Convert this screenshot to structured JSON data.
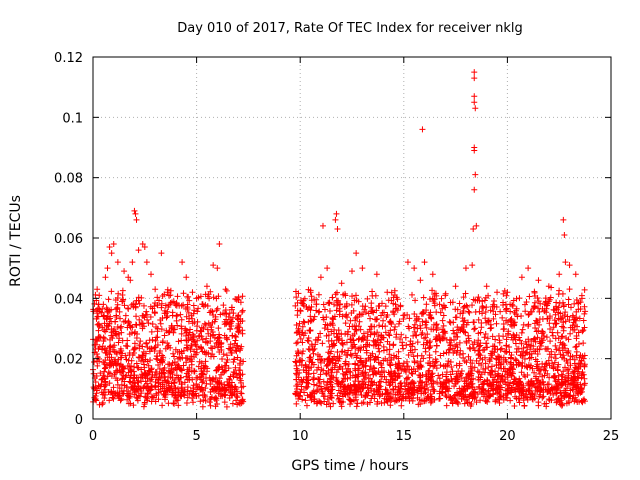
{
  "chart_data": {
    "type": "scatter",
    "title": "Day 010 of 2017, Rate Of TEC Index for receiver nklg",
    "xlabel": "GPS time / hours",
    "ylabel": "ROTI / TECUs",
    "xlim": [
      0,
      25
    ],
    "ylim": [
      0,
      0.12
    ],
    "xticks": [
      0,
      5,
      10,
      15,
      20,
      25
    ],
    "yticks": [
      0,
      0.02,
      0.04,
      0.06,
      0.08,
      0.1,
      0.12
    ],
    "xtick_labels": [
      "0",
      "5",
      "10",
      "15",
      "20",
      "25"
    ],
    "ytick_labels": [
      "0",
      "0.02",
      "0.04",
      "0.06",
      "0.08",
      "0.1",
      "0.12"
    ],
    "grid": true,
    "marker": "+",
    "color": "#ff0000",
    "data_segments": [
      {
        "x_start": 0.0,
        "x_end": 7.25
      },
      {
        "x_start": 9.75,
        "x_end": 23.75
      }
    ],
    "series": [
      {
        "name": "ROTI",
        "points": [
          [
            0.2,
            0.043
          ],
          [
            0.3,
            0.041
          ],
          [
            0.5,
            0.038
          ],
          [
            0.6,
            0.047
          ],
          [
            0.7,
            0.05
          ],
          [
            0.8,
            0.057
          ],
          [
            0.9,
            0.055
          ],
          [
            1.0,
            0.058
          ],
          [
            1.2,
            0.052
          ],
          [
            1.5,
            0.049
          ],
          [
            1.7,
            0.047
          ],
          [
            1.8,
            0.046
          ],
          [
            1.9,
            0.052
          ],
          [
            2.0,
            0.069
          ],
          [
            2.05,
            0.068
          ],
          [
            2.1,
            0.066
          ],
          [
            2.2,
            0.056
          ],
          [
            2.4,
            0.058
          ],
          [
            2.5,
            0.057
          ],
          [
            2.6,
            0.052
          ],
          [
            2.8,
            0.048
          ],
          [
            3.0,
            0.043
          ],
          [
            3.3,
            0.055
          ],
          [
            3.6,
            0.042
          ],
          [
            3.9,
            0.039
          ],
          [
            4.3,
            0.052
          ],
          [
            4.5,
            0.047
          ],
          [
            4.8,
            0.042
          ],
          [
            5.0,
            0.04
          ],
          [
            5.3,
            0.038
          ],
          [
            5.5,
            0.044
          ],
          [
            5.8,
            0.051
          ],
          [
            6.0,
            0.05
          ],
          [
            6.1,
            0.058
          ],
          [
            6.4,
            0.043
          ],
          [
            6.7,
            0.037
          ],
          [
            7.0,
            0.033
          ],
          [
            10.0,
            0.036
          ],
          [
            10.5,
            0.042
          ],
          [
            11.0,
            0.047
          ],
          [
            11.1,
            0.064
          ],
          [
            11.3,
            0.05
          ],
          [
            11.7,
            0.066
          ],
          [
            11.75,
            0.068
          ],
          [
            11.8,
            0.063
          ],
          [
            12.0,
            0.045
          ],
          [
            12.5,
            0.049
          ],
          [
            12.7,
            0.055
          ],
          [
            13.0,
            0.05
          ],
          [
            13.7,
            0.048
          ],
          [
            14.2,
            0.042
          ],
          [
            14.6,
            0.038
          ],
          [
            15.2,
            0.052
          ],
          [
            15.5,
            0.05
          ],
          [
            15.8,
            0.046
          ],
          [
            15.9,
            0.096
          ],
          [
            16.0,
            0.052
          ],
          [
            16.4,
            0.048
          ],
          [
            17.0,
            0.041
          ],
          [
            17.5,
            0.044
          ],
          [
            18.0,
            0.05
          ],
          [
            18.3,
            0.051
          ],
          [
            18.35,
            0.063
          ],
          [
            18.4,
            0.076
          ],
          [
            18.4,
            0.089
          ],
          [
            18.4,
            0.09
          ],
          [
            18.45,
            0.103
          ],
          [
            18.4,
            0.105
          ],
          [
            18.4,
            0.107
          ],
          [
            18.4,
            0.113
          ],
          [
            18.4,
            0.115
          ],
          [
            18.45,
            0.081
          ],
          [
            18.5,
            0.064
          ],
          [
            19.0,
            0.044
          ],
          [
            19.5,
            0.042
          ],
          [
            20.0,
            0.042
          ],
          [
            20.7,
            0.047
          ],
          [
            21.0,
            0.05
          ],
          [
            21.5,
            0.046
          ],
          [
            22.0,
            0.044
          ],
          [
            22.5,
            0.048
          ],
          [
            22.7,
            0.066
          ],
          [
            22.75,
            0.061
          ],
          [
            22.8,
            0.052
          ],
          [
            23.0,
            0.051
          ],
          [
            23.3,
            0.048
          ],
          [
            23.6,
            0.04
          ]
        ]
      }
    ]
  }
}
